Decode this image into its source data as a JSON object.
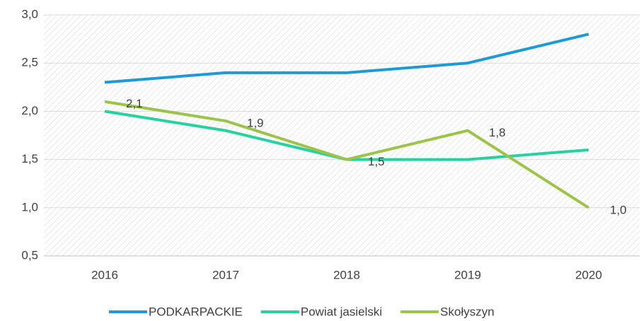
{
  "chart_data": {
    "type": "line",
    "categories": [
      "2016",
      "2017",
      "2018",
      "2019",
      "2020"
    ],
    "series": [
      {
        "name": "PODKARPACKIE",
        "color": "#1e9ad6",
        "values": [
          2.3,
          2.4,
          2.4,
          2.5,
          2.8
        ]
      },
      {
        "name": "Powiat jasielski",
        "color": "#27d1a0",
        "values": [
          2.0,
          1.8,
          1.5,
          1.5,
          1.6
        ]
      },
      {
        "name": "Skołyszyn",
        "color": "#9dc34a",
        "values": [
          2.1,
          1.9,
          1.5,
          1.8,
          1.0
        ],
        "value_labels": [
          "2,1",
          "1,9",
          "1,5",
          "1,8",
          "1,0"
        ]
      }
    ],
    "ylim": [
      0.5,
      3.0
    ],
    "yticks": [
      {
        "value": 0.5,
        "label": "0,5"
      },
      {
        "value": 1.0,
        "label": "1,0"
      },
      {
        "value": 1.5,
        "label": "1,5"
      },
      {
        "value": 2.0,
        "label": "2,0"
      },
      {
        "value": 2.5,
        "label": "2,5"
      },
      {
        "value": 3.0,
        "label": "3,0"
      }
    ],
    "grid": true,
    "legend": "bottom"
  }
}
